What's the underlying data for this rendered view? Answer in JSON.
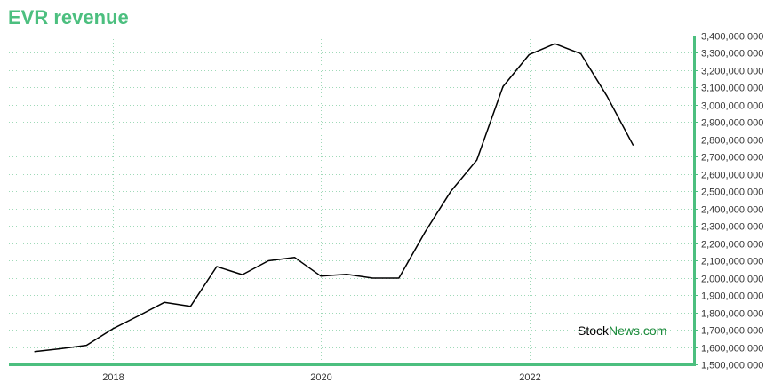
{
  "title": "EVR revenue",
  "watermark": {
    "part1": "Stock",
    "part2": "News.com"
  },
  "colors": {
    "title": "#4cbf7f",
    "axis": "#4cbf7f",
    "grid": "#9fd9b8",
    "line": "#000000"
  },
  "chart_data": {
    "type": "line",
    "title": "EVR revenue",
    "xlabel": "",
    "ylabel": "",
    "x": [
      "2017-03-31",
      "2017-06-30",
      "2017-09-30",
      "2017-12-31",
      "2018-03-31",
      "2018-06-30",
      "2018-09-30",
      "2018-12-31",
      "2019-03-31",
      "2019-06-30",
      "2019-09-30",
      "2019-12-31",
      "2020-03-31",
      "2020-06-30",
      "2020-09-30",
      "2020-12-31",
      "2021-03-31",
      "2021-06-30",
      "2021-09-30",
      "2021-12-31",
      "2022-03-31",
      "2022-06-30",
      "2022-09-30",
      "2022-12-31"
    ],
    "series": [
      {
        "values": [
          1573000000,
          1590000000,
          1610000000,
          1705000000,
          1780000000,
          1858000000,
          1835000000,
          2065000000,
          2018000000,
          2098000000,
          2118000000,
          2010000000,
          2020000000,
          1998000000,
          1998000000,
          2265000000,
          2500000000,
          2680000000,
          3105000000,
          3290000000,
          3353000000,
          3295000000,
          3050000000,
          2765000000
        ]
      }
    ],
    "x_ticks": [
      "2018",
      "2020",
      "2022"
    ],
    "y_ticks": [
      "1,500,000,000",
      "1,600,000,000",
      "1,700,000,000",
      "1,800,000,000",
      "1,900,000,000",
      "2,000,000,000",
      "2,100,000,000",
      "2,200,000,000",
      "2,300,000,000",
      "2,400,000,000",
      "2,500,000,000",
      "2,600,000,000",
      "2,700,000,000",
      "2,800,000,000",
      "2,900,000,000",
      "3,000,000,000",
      "3,100,000,000",
      "3,200,000,000",
      "3,300,000,000",
      "3,400,000,000"
    ],
    "ylim": [
      1500000000,
      3400000000
    ],
    "xlim": [
      "2017-01-01",
      "2023-08-01"
    ],
    "grid": true,
    "y_axis_side": "right"
  }
}
